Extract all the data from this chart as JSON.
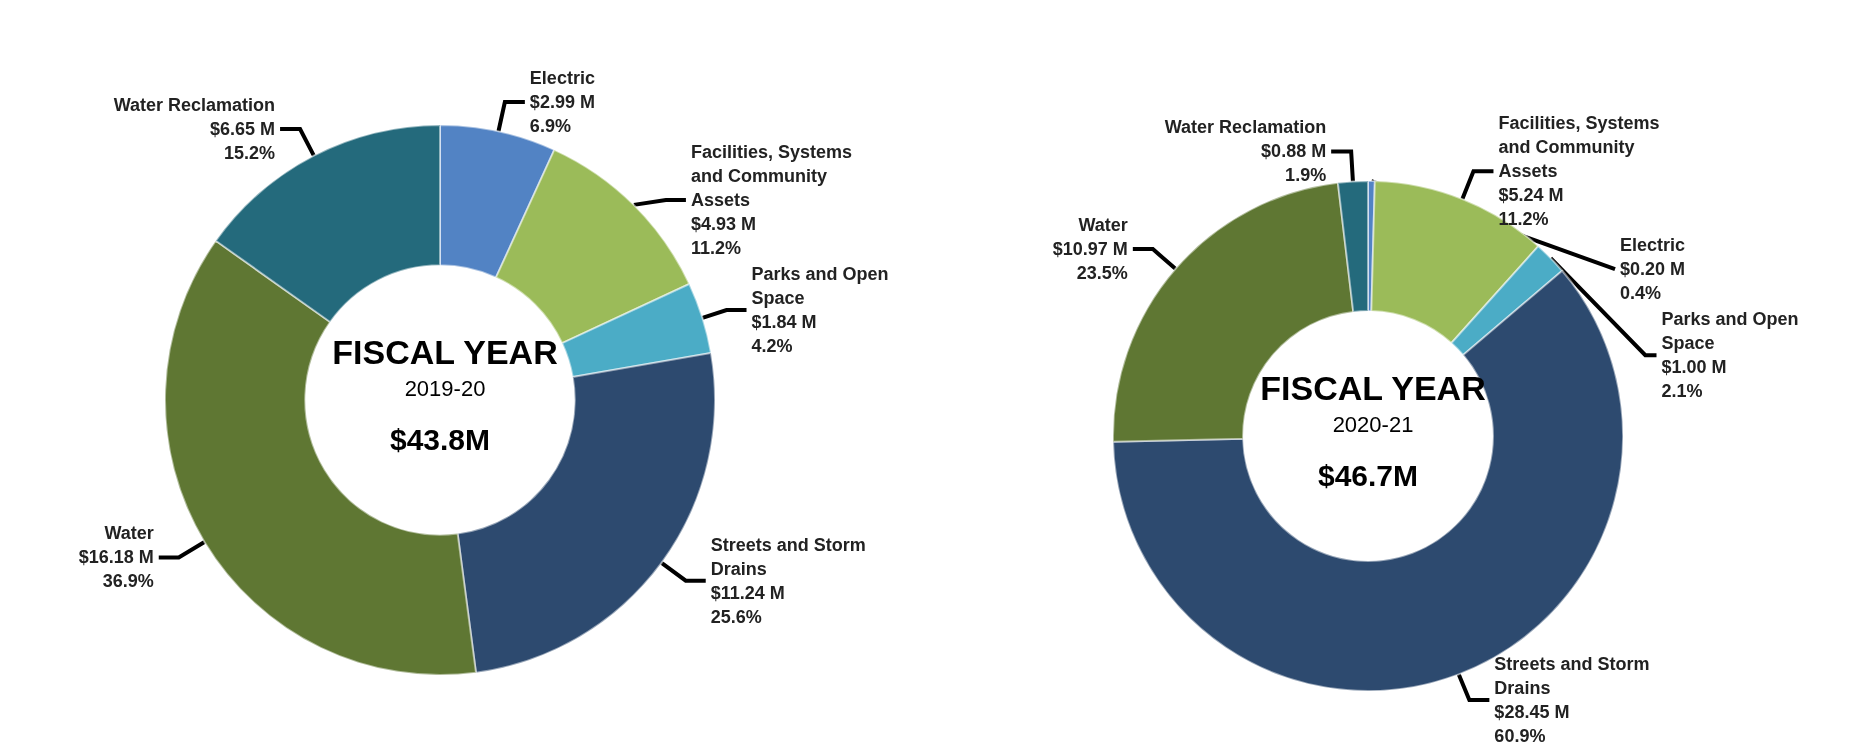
{
  "chart_data": [
    {
      "type": "donut",
      "title": "FISCAL YEAR",
      "subtitle": "2019-20",
      "annotations": [
        "$43.8M"
      ],
      "categories": [
        "Electric",
        "Facilities, Systems and Community Assets",
        "Parks and Open Space",
        "Streets and Storm Drains",
        "Water",
        "Water Reclamation"
      ],
      "values": [
        2.99,
        4.93,
        1.84,
        11.24,
        16.18,
        6.65
      ],
      "value_labels": [
        "$2.99 M\n6.9%",
        "$4.93 M\n11.2%",
        "$1.84 M\n4.2%",
        "$11.24 M\n25.6%",
        "$16.18 M\n36.9%",
        "$6.65 M\n15.2%"
      ],
      "colors": [
        "#5283c4",
        "#9bbb59",
        "#4bacc6",
        "#2d4a6f",
        "#5f7733",
        "#246a7c"
      ],
      "legend": false
    },
    {
      "type": "donut",
      "title": "FISCAL YEAR",
      "subtitle": "2020-21",
      "annotations": [
        "$46.7M"
      ],
      "categories": [
        "Electric",
        "Facilities, Systems and Community Assets",
        "Parks and Open Space",
        "Streets and Storm Drains",
        "Water",
        "Water Reclamation"
      ],
      "values": [
        0.2,
        5.24,
        1.0,
        28.45,
        10.97,
        0.88
      ],
      "value_labels": [
        "$0.20 M\n0.4%",
        "$5.24 M\n11.2%",
        "$1.00 M\n2.1%",
        "$28.45 M\n60.9%",
        "$10.97 M\n23.5%",
        "$0.88 M\n1.9%"
      ],
      "colors": [
        "#5283c4",
        "#9bbb59",
        "#4bacc6",
        "#2d4a6f",
        "#5f7733",
        "#246a7c"
      ],
      "legend": false
    }
  ]
}
